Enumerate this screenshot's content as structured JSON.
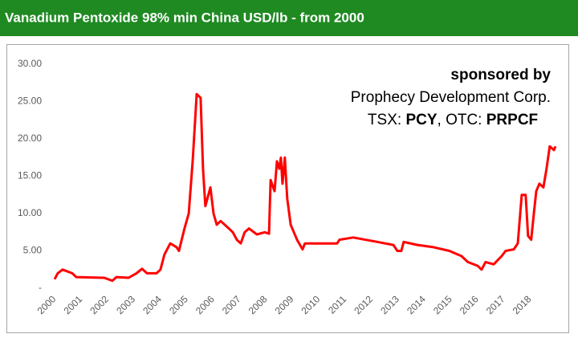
{
  "chart_data": {
    "type": "line",
    "title": "Vanadium Pentoxide 98% min China USD/lb - from 2000",
    "annotation": {
      "line1": "sponsored by",
      "line2": "Prophecy Development Corp.",
      "line3": [
        "TSX: ",
        "PCY",
        ", OTC: ",
        "PRPCF"
      ]
    },
    "x": [
      2000.0,
      2000.12,
      2000.3,
      2000.67,
      2000.82,
      2001.88,
      2002.19,
      2002.34,
      2002.8,
      2003.1,
      2003.31,
      2003.5,
      2003.86,
      2004.01,
      2004.16,
      2004.38,
      2004.62,
      2004.71,
      2004.92,
      2005.08,
      2005.23,
      2005.38,
      2005.53,
      2005.62,
      2005.71,
      2005.9,
      2006.02,
      2006.14,
      2006.29,
      2006.6,
      2006.75,
      2006.9,
      2007.05,
      2007.2,
      2007.36,
      2007.66,
      2007.96,
      2008.12,
      2008.18,
      2008.33,
      2008.42,
      2008.51,
      2008.57,
      2008.63,
      2008.72,
      2008.81,
      2008.94,
      2009.18,
      2009.39,
      2009.48,
      2010.7,
      2010.79,
      2011.31,
      2012.22,
      2012.83,
      2012.98,
      2013.13,
      2013.22,
      2013.74,
      2014.35,
      2014.95,
      2015.41,
      2015.65,
      2016.02,
      2016.17,
      2016.32,
      2016.63,
      2016.93,
      2017.08,
      2017.39,
      2017.54,
      2017.69,
      2017.84,
      2017.93,
      2018.05,
      2018.15,
      2018.24,
      2018.36,
      2018.51,
      2018.63,
      2018.75,
      2018.91,
      2018.97
    ],
    "series": [
      {
        "name": "Vanadium Pentoxide",
        "color": "#ff0000",
        "values": [
          1.2,
          2.0,
          2.5,
          2.0,
          1.5,
          1.4,
          1.0,
          1.5,
          1.4,
          2.0,
          2.6,
          2.0,
          2.0,
          2.5,
          4.5,
          6.0,
          5.5,
          5.0,
          8.0,
          10.0,
          17.0,
          26.0,
          25.5,
          16.0,
          11.0,
          13.5,
          10.0,
          8.5,
          9.0,
          8.0,
          7.5,
          6.5,
          6.0,
          7.5,
          8.0,
          7.2,
          7.5,
          7.3,
          14.5,
          13.0,
          17.0,
          16.0,
          17.5,
          14.0,
          17.5,
          12.0,
          8.5,
          6.5,
          5.2,
          6.0,
          6.0,
          6.5,
          6.8,
          6.2,
          5.8,
          5.0,
          5.0,
          6.2,
          5.8,
          5.5,
          5.0,
          4.3,
          3.5,
          3.0,
          2.5,
          3.5,
          3.2,
          4.3,
          5.0,
          5.2,
          6.0,
          12.5,
          12.5,
          7.0,
          6.5,
          10.0,
          13.0,
          14.0,
          13.5,
          16.0,
          19.0,
          18.5,
          19.0
        ]
      }
    ],
    "xlim": [
      2000,
      2019
    ],
    "xticks": [
      2000,
      2001,
      2002,
      2003,
      2004,
      2005,
      2006,
      2007,
      2008,
      2009,
      2010,
      2011,
      2012,
      2013,
      2014,
      2015,
      2016,
      2017,
      2018
    ],
    "ylim": [
      0,
      30
    ],
    "yticks": [
      {
        "value": 0,
        "label": "-"
      },
      {
        "value": 5,
        "label": "5.00"
      },
      {
        "value": 10,
        "label": "10.00"
      },
      {
        "value": 15,
        "label": "15.00"
      },
      {
        "value": 20,
        "label": "20.00"
      },
      {
        "value": 25,
        "label": "25.00"
      },
      {
        "value": 30,
        "label": "30.00"
      }
    ],
    "grid": false
  }
}
